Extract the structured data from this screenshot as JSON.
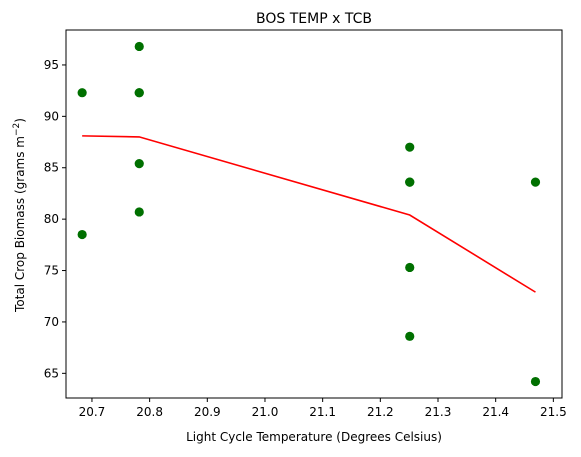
{
  "chart_data": {
    "type": "scatter",
    "title": "BOS TEMP x TCB",
    "xlabel": "Light Cycle Temperature (Degrees Celsius)",
    "ylabel_main": "Total Crop Biomass (grams m",
    "ylabel_sup": "−2",
    "ylabel_close": ")",
    "xlim": [
      20.655,
      21.515
    ],
    "ylim": [
      62.6,
      98.4
    ],
    "xticks": [
      20.7,
      20.8,
      20.9,
      21.0,
      21.1,
      21.2,
      21.3,
      21.4,
      21.5
    ],
    "xtick_labels": [
      "20.7",
      "20.8",
      "20.9",
      "21.0",
      "21.1",
      "21.2",
      "21.3",
      "21.4",
      "21.5"
    ],
    "yticks": [
      65,
      70,
      75,
      80,
      85,
      90,
      95
    ],
    "ytick_labels": [
      "65",
      "70",
      "75",
      "80",
      "85",
      "90",
      "95"
    ],
    "grid": false,
    "series": [
      {
        "kind": "scatter",
        "color": "#007000",
        "points": [
          {
            "x": 20.683,
            "y": 92.3
          },
          {
            "x": 20.683,
            "y": 78.5
          },
          {
            "x": 20.782,
            "y": 96.8
          },
          {
            "x": 20.782,
            "y": 92.3
          },
          {
            "x": 20.782,
            "y": 92.3
          },
          {
            "x": 20.782,
            "y": 85.4
          },
          {
            "x": 20.782,
            "y": 80.7
          },
          {
            "x": 21.251,
            "y": 87.0
          },
          {
            "x": 21.251,
            "y": 83.6
          },
          {
            "x": 21.251,
            "y": 83.6
          },
          {
            "x": 21.251,
            "y": 75.3
          },
          {
            "x": 21.251,
            "y": 68.6
          },
          {
            "x": 21.469,
            "y": 83.6
          },
          {
            "x": 21.469,
            "y": 64.2
          }
        ]
      },
      {
        "kind": "line",
        "color": "#ff0000",
        "points": [
          {
            "x": 20.683,
            "y": 88.1
          },
          {
            "x": 20.782,
            "y": 88.0
          },
          {
            "x": 21.251,
            "y": 80.4
          },
          {
            "x": 21.469,
            "y": 72.9
          }
        ]
      }
    ]
  }
}
